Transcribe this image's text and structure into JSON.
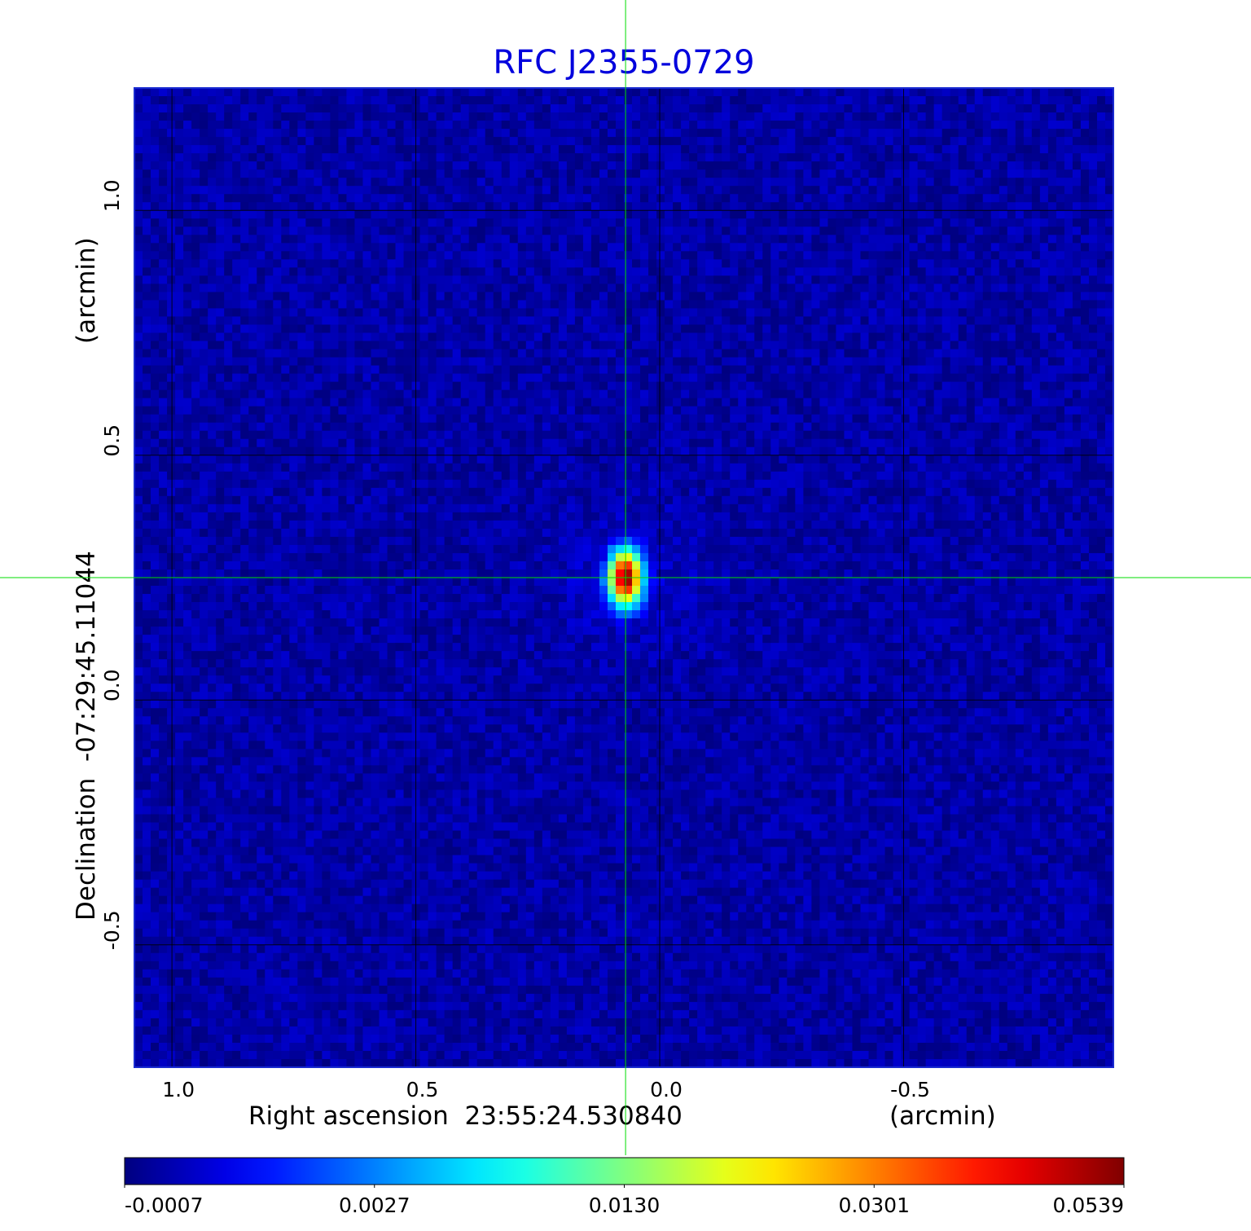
{
  "chart_data": {
    "type": "heatmap",
    "title": "RFC J2355-0729",
    "title_color": "#0000dd",
    "xlabel_left": "Right ascension  23:55:24.530840",
    "xlabel_right": "(arcmin)",
    "ylabel_left": "Declination  -07:29:45.11044",
    "ylabel_right": "(arcmin)",
    "x_axis": {
      "lim": [
        1.077,
        -0.93
      ],
      "ticks": [
        1.0,
        0.5,
        0.0,
        -0.5
      ],
      "tick_labels": [
        "1.0",
        "0.5",
        "0.0",
        "-0.5"
      ],
      "direction": "decreasing to the right"
    },
    "y_axis": {
      "lim": [
        -0.75,
        1.25
      ],
      "ticks": [
        1.0,
        0.5,
        0.0,
        -0.5
      ],
      "tick_labels": [
        "1.0",
        "0.5",
        "0.0",
        "-0.5"
      ]
    },
    "grid": true,
    "grid_color": "#000000",
    "crosshair_color": "#00dd00",
    "crosshair": {
      "x": 0.07,
      "y": 0.25
    },
    "source": {
      "x": 0.07,
      "y": 0.25,
      "peak": 0.0539,
      "sigma_x_arcmin": 0.018,
      "sigma_y_arcmin": 0.03
    },
    "background_level": -0.0002,
    "colormap": "jet",
    "colorbar": {
      "ticks": [
        -0.0007,
        0.0027,
        0.013,
        0.0301,
        0.0539
      ],
      "tick_labels": [
        "-0.0007",
        "0.0027",
        "0.0130",
        "0.0301",
        "0.0539"
      ],
      "orientation": "horizontal"
    }
  }
}
